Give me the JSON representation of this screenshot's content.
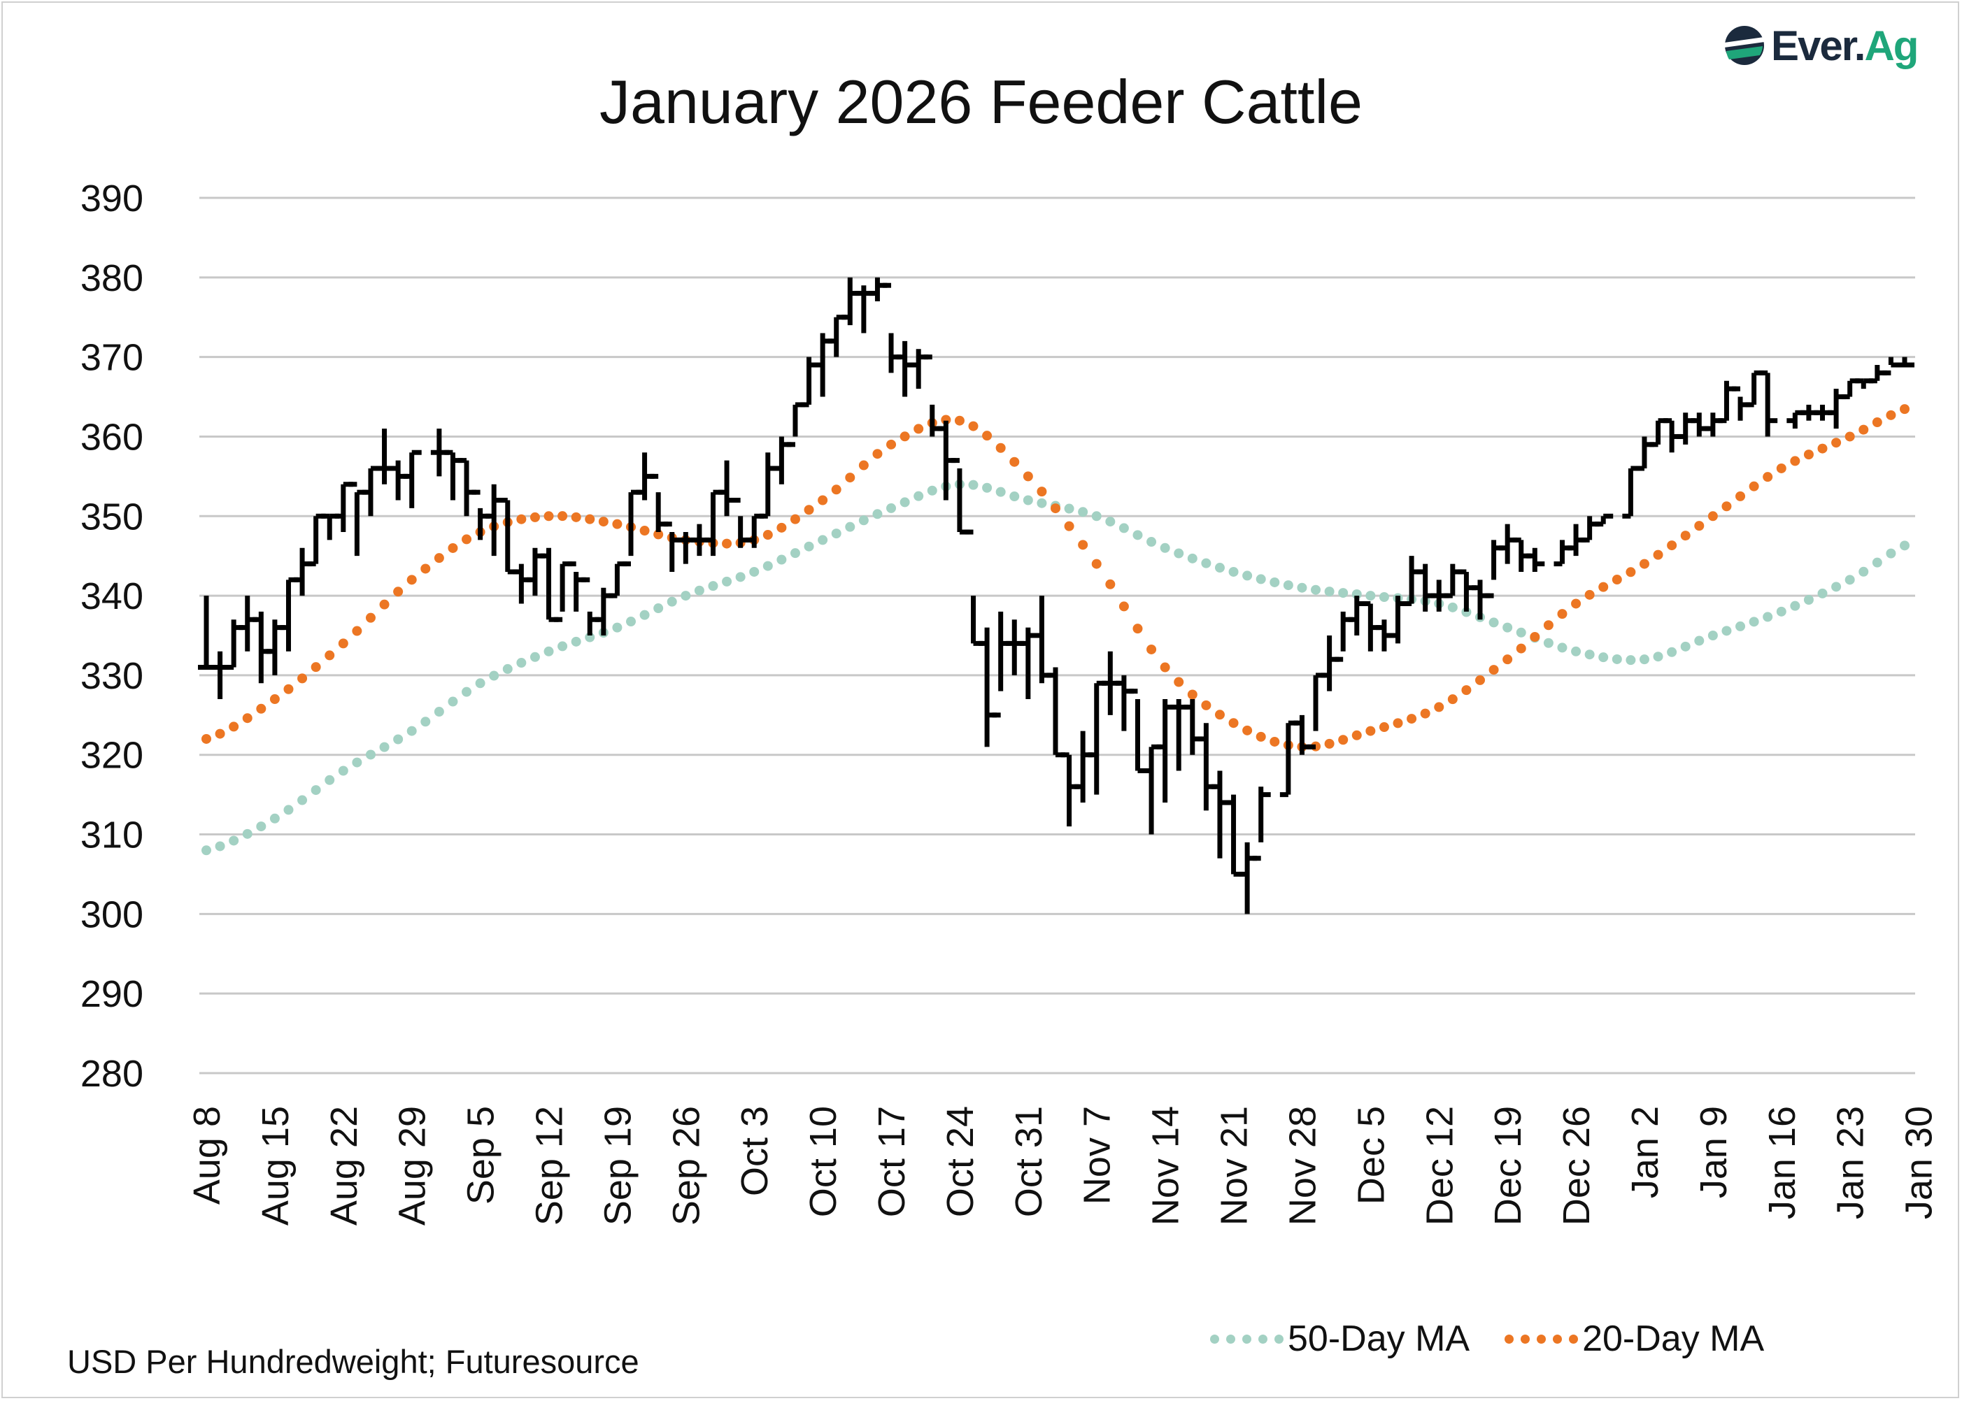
{
  "title": "January 2026 Feeder Cattle",
  "source_note": "USD Per Hundredweight; Futuresource",
  "logo": {
    "text_1": "Ever.",
    "text_2": "Ag"
  },
  "chart_data": {
    "type": "ohlc",
    "title": "January 2026 Feeder Cattle",
    "ylabel": "USD Per Hundredweight",
    "ylim": [
      280,
      390
    ],
    "yticks": [
      390,
      380,
      370,
      360,
      350,
      340,
      330,
      320,
      310,
      300,
      290,
      280
    ],
    "grid": true,
    "legend_position": "bottom-right",
    "colors": {
      "bars": "#000000",
      "ma50": "#a3d1c3",
      "ma20": "#ec7623",
      "grid": "#c8c8c8"
    },
    "xlabels": [
      "Aug 8",
      "Aug 15",
      "Aug 22",
      "Aug 29",
      "Sep 5",
      "Sep 12",
      "Sep 19",
      "Sep 26",
      "Oct 3",
      "Oct 10",
      "Oct 17",
      "Oct 24",
      "Oct 31",
      "Nov 7",
      "Nov 14",
      "Nov 21",
      "Nov 28",
      "Dec 5",
      "Dec 12",
      "Dec 19",
      "Dec 26",
      "Jan 2",
      "Jan 9",
      "Jan 16",
      "Jan 23",
      "Jan 30"
    ],
    "bars_hlc_note": "daily bars [high, low, close]; open = prior close; null = no trading",
    "bars": [
      [
        340,
        331,
        331
      ],
      [
        333,
        327,
        331
      ],
      [
        337,
        331,
        336
      ],
      [
        340,
        333,
        337
      ],
      [
        338,
        329,
        333
      ],
      [
        337,
        330,
        336
      ],
      [
        342,
        333,
        342
      ],
      [
        346,
        340,
        344
      ],
      [
        350,
        344,
        350
      ],
      [
        350,
        347,
        350
      ],
      [
        354,
        348,
        354
      ],
      [
        353,
        345,
        353
      ],
      [
        356,
        350,
        356
      ],
      [
        361,
        354,
        356
      ],
      [
        357,
        352,
        355
      ],
      [
        358,
        351,
        358
      ],
      null,
      [
        361,
        355,
        358
      ],
      [
        358,
        352,
        357
      ],
      [
        357,
        350,
        353
      ],
      [
        351,
        347,
        350
      ],
      [
        354,
        345,
        352
      ],
      [
        352,
        343,
        343
      ],
      [
        344,
        339,
        342
      ],
      [
        346,
        340,
        345
      ],
      [
        346,
        337,
        337
      ],
      [
        344,
        338,
        344
      ],
      [
        343,
        338,
        342
      ],
      [
        338,
        335,
        337
      ],
      [
        341,
        335,
        340
      ],
      [
        344,
        340,
        344
      ],
      [
        353,
        345,
        353
      ],
      [
        358,
        352,
        355
      ],
      [
        353,
        348,
        349
      ],
      [
        348,
        343,
        347
      ],
      [
        348,
        344,
        347
      ],
      [
        349,
        345,
        347
      ],
      [
        353,
        345,
        353
      ],
      [
        357,
        350,
        352
      ],
      [
        350,
        346,
        347
      ],
      [
        350,
        346,
        350
      ],
      [
        358,
        350,
        356
      ],
      [
        360,
        354,
        359
      ],
      [
        364,
        360,
        364
      ],
      [
        370,
        364,
        369
      ],
      [
        373,
        365,
        372
      ],
      [
        375,
        370,
        375
      ],
      [
        380,
        374,
        378
      ],
      [
        379,
        373,
        378
      ],
      [
        380,
        377,
        379
      ],
      [
        373,
        368,
        370
      ],
      [
        372,
        365,
        369
      ],
      [
        371,
        366,
        370
      ],
      [
        364,
        360,
        361
      ],
      [
        362,
        352,
        357
      ],
      [
        356,
        348,
        348
      ],
      [
        340,
        334,
        334
      ],
      [
        336,
        321,
        325
      ],
      [
        338,
        328,
        334
      ],
      [
        337,
        330,
        334
      ],
      [
        336,
        327,
        335
      ],
      [
        340,
        329,
        330
      ],
      [
        331,
        320,
        320
      ],
      [
        320,
        311,
        316
      ],
      [
        323,
        314,
        320
      ],
      [
        329,
        315,
        329
      ],
      [
        333,
        325,
        329
      ],
      [
        330,
        323,
        328
      ],
      [
        327,
        318,
        318
      ],
      [
        321,
        310,
        321
      ],
      [
        327,
        314,
        326
      ],
      [
        327,
        318,
        326
      ],
      [
        327,
        320,
        322
      ],
      [
        324,
        313,
        316
      ],
      [
        318,
        307,
        314
      ],
      [
        315,
        305,
        305
      ],
      [
        309,
        300,
        307
      ],
      [
        316,
        309,
        315
      ],
      null,
      [
        324,
        315,
        324
      ],
      [
        325,
        320,
        321
      ],
      [
        330,
        323,
        330
      ],
      [
        335,
        328,
        332
      ],
      [
        338,
        333,
        337
      ],
      [
        340,
        335,
        339
      ],
      [
        339,
        333,
        336
      ],
      [
        337,
        333,
        335
      ],
      [
        340,
        334,
        339
      ],
      [
        345,
        339,
        343
      ],
      [
        344,
        338,
        340
      ],
      [
        342,
        338,
        340
      ],
      [
        344,
        340,
        343
      ],
      [
        343,
        338,
        341
      ],
      [
        342,
        337,
        340
      ],
      [
        347,
        342,
        346
      ],
      [
        349,
        344,
        347
      ],
      [
        347,
        343,
        345
      ],
      [
        346,
        343,
        344
      ],
      null,
      [
        347,
        344,
        346
      ],
      [
        349,
        345,
        347
      ],
      [
        350,
        347,
        349
      ],
      [
        350,
        349,
        350
      ],
      null,
      [
        356,
        350,
        356
      ],
      [
        360,
        356,
        359
      ],
      [
        362,
        359,
        362
      ],
      [
        362,
        358,
        360
      ],
      [
        363,
        359,
        362
      ],
      [
        363,
        360,
        361
      ],
      [
        363,
        360,
        362
      ],
      [
        367,
        362,
        366
      ],
      [
        365,
        362,
        364
      ],
      [
        368,
        364,
        368
      ],
      [
        368,
        360,
        362
      ],
      null,
      [
        363,
        361,
        363
      ],
      [
        364,
        362,
        363
      ],
      [
        364,
        362,
        363
      ],
      [
        366,
        361,
        365
      ],
      [
        367,
        365,
        367
      ],
      [
        367,
        366,
        367
      ],
      [
        369,
        367,
        368
      ],
      [
        370,
        369,
        369
      ],
      [
        370,
        369,
        369
      ]
    ],
    "series": [
      {
        "name": "50-Day MA",
        "color": "#a3d1c3",
        "weekly_values": [
          308,
          312,
          318,
          323,
          329,
          333,
          336,
          340,
          343,
          347,
          351,
          354,
          352,
          350,
          346,
          343,
          341,
          340,
          339,
          336,
          333,
          332,
          335,
          338,
          342,
          347
        ]
      },
      {
        "name": "20-Day MA",
        "color": "#ec7623",
        "weekly_values": [
          322,
          327,
          334,
          342,
          348,
          350,
          349,
          347,
          347,
          352,
          359,
          362,
          355,
          344,
          331,
          324,
          321,
          323,
          326,
          332,
          339,
          344,
          350,
          356,
          360,
          364
        ]
      }
    ]
  }
}
